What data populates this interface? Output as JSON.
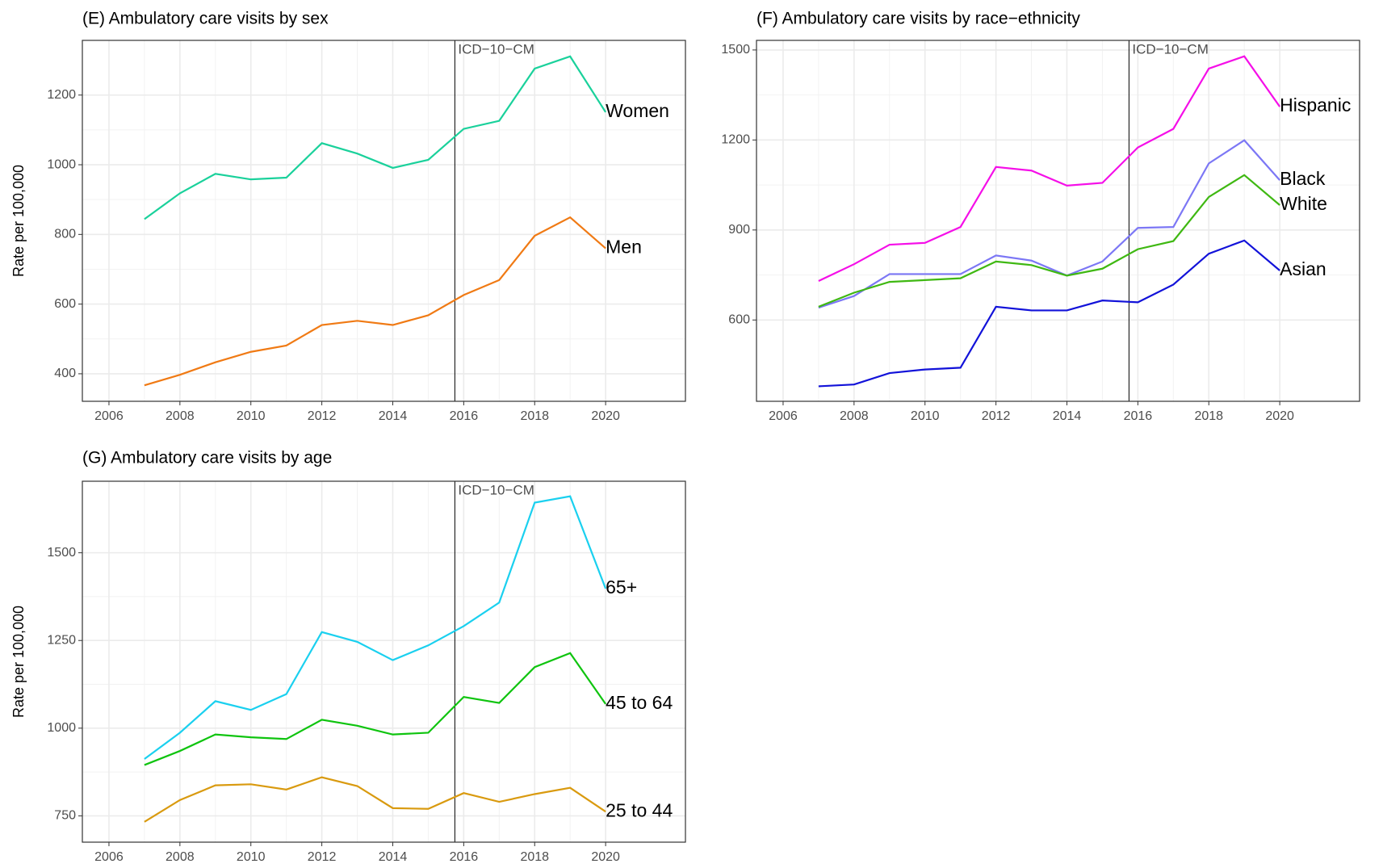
{
  "chart_data": [
    {
      "type": "line",
      "title": "(E) Ambulatory care visits by sex",
      "y_label": "Rate per 100,000",
      "x": [
        2007,
        2008,
        2009,
        2010,
        2011,
        2012,
        2013,
        2014,
        2015,
        2016,
        2017,
        2018,
        2019,
        2020
      ],
      "series": [
        {
          "name": "Women",
          "color": "#1ad19b",
          "values": [
            844,
            918,
            974,
            958,
            963,
            1062,
            1032,
            991,
            1014,
            1103,
            1126,
            1276,
            1311,
            1151
          ]
        },
        {
          "name": "Men",
          "color": "#f07a14",
          "values": [
            367,
            397,
            433,
            463,
            481,
            540,
            552,
            540,
            568,
            626,
            669,
            796,
            849,
            760
          ]
        }
      ],
      "xlim": [
        2005.25,
        2022.25
      ],
      "ylim": [
        321,
        1357
      ],
      "xticks": [
        2006,
        2008,
        2010,
        2012,
        2014,
        2016,
        2018,
        2020
      ],
      "yticks": [
        400,
        600,
        800,
        1000,
        1200
      ],
      "vline": {
        "x": 2015.75,
        "label": "ICD−10−CM"
      },
      "grid": true
    },
    {
      "type": "line",
      "title": "(F) Ambulatory care visits by race−ethnicity",
      "x": [
        2007,
        2008,
        2009,
        2010,
        2011,
        2012,
        2013,
        2014,
        2015,
        2016,
        2017,
        2018,
        2019,
        2020
      ],
      "series": [
        {
          "name": "Hispanic",
          "color": "#f50fe8",
          "values": [
            730,
            786,
            851,
            857,
            910,
            1110,
            1098,
            1048,
            1057,
            1175,
            1237,
            1438,
            1479,
            1311
          ]
        },
        {
          "name": "Black",
          "color": "#7c77f5",
          "values": [
            641,
            680,
            753,
            753,
            753,
            815,
            798,
            748,
            795,
            907,
            910,
            1122,
            1199,
            1066
          ]
        },
        {
          "name": "White",
          "color": "#3fb812",
          "values": [
            644,
            691,
            727,
            733,
            739,
            795,
            783,
            748,
            771,
            836,
            863,
            1010,
            1083,
            983
          ]
        },
        {
          "name": "Asian",
          "color": "#1212d9",
          "values": [
            379,
            385,
            423,
            435,
            441,
            644,
            632,
            632,
            665,
            659,
            718,
            821,
            865,
            765
          ]
        }
      ],
      "xlim": [
        2005.25,
        2022.25
      ],
      "ylim": [
        329,
        1532
      ],
      "xticks": [
        2006,
        2008,
        2010,
        2012,
        2014,
        2016,
        2018,
        2020
      ],
      "yticks": [
        600,
        900,
        1200,
        1500
      ],
      "vline": {
        "x": 2015.75,
        "label": "ICD−10−CM"
      },
      "grid": true
    },
    {
      "type": "line",
      "title": "(G) Ambulatory care visits by age",
      "y_label": "Rate per 100,000",
      "x": [
        2007,
        2008,
        2009,
        2010,
        2011,
        2012,
        2013,
        2014,
        2015,
        2016,
        2017,
        2018,
        2019,
        2020
      ],
      "series": [
        {
          "name": "65+",
          "color": "#1ad0ef",
          "values": [
            912,
            987,
            1077,
            1052,
            1097,
            1274,
            1246,
            1194,
            1236,
            1291,
            1358,
            1643,
            1661,
            1398
          ]
        },
        {
          "name": "45 to 64",
          "color": "#0fc40f",
          "values": [
            895,
            935,
            982,
            974,
            969,
            1024,
            1007,
            982,
            987,
            1089,
            1072,
            1174,
            1214,
            1069
          ]
        },
        {
          "name": "25 to 44",
          "color": "#d99a0f",
          "values": [
            733,
            795,
            837,
            840,
            825,
            860,
            835,
            772,
            770,
            815,
            790,
            812,
            830,
            762
          ]
        }
      ],
      "xlim": [
        2005.25,
        2022.25
      ],
      "ylim": [
        675,
        1704
      ],
      "xticks": [
        2006,
        2008,
        2010,
        2012,
        2014,
        2016,
        2018,
        2020
      ],
      "yticks": [
        750,
        1000,
        1250,
        1500
      ],
      "vline": {
        "x": 2015.75,
        "label": "ICD−10−CM"
      },
      "grid": true
    }
  ]
}
